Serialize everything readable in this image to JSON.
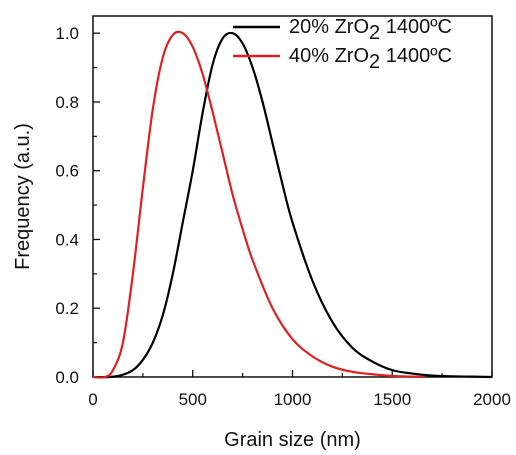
{
  "chart_data": {
    "type": "line",
    "xlabel": "Grain size (nm)",
    "ylabel": "Frequency (a.u.)",
    "xlim": [
      0,
      2000
    ],
    "ylim": [
      0,
      1.05
    ],
    "x_ticks": [
      "0",
      "500",
      "1000",
      "1500",
      "2000"
    ],
    "y_ticks": [
      "0.0",
      "0.2",
      "0.4",
      "0.6",
      "0.8",
      "1.0"
    ],
    "grid": false,
    "legend_position": "top-right",
    "series": [
      {
        "name": "20% ZrO2 1400ºC",
        "legend": {
          "prefix": "20% ZrO",
          "sub": "2",
          "suffix": " 1400ºC"
        },
        "color": "#000000",
        "x": [
          0,
          80,
          140,
          200,
          250,
          300,
          350,
          400,
          450,
          500,
          550,
          600,
          650,
          700,
          750,
          800,
          850,
          900,
          950,
          1000,
          1100,
          1200,
          1300,
          1400,
          1500,
          1600,
          1700,
          1800,
          1900,
          2000
        ],
        "y": [
          0,
          0.0,
          0.005,
          0.02,
          0.05,
          0.1,
          0.18,
          0.3,
          0.45,
          0.6,
          0.77,
          0.91,
          0.985,
          1.0,
          0.97,
          0.9,
          0.8,
          0.68,
          0.56,
          0.45,
          0.28,
          0.16,
          0.085,
          0.045,
          0.02,
          0.01,
          0.004,
          0.002,
          0.001,
          0.0
        ]
      },
      {
        "name": "40% ZrO2 1400ºC",
        "legend": {
          "prefix": "40% ZrO",
          "sub": "2",
          "suffix": " 1400ºC"
        },
        "color": "#e02020",
        "x": [
          0,
          60,
          100,
          150,
          200,
          250,
          300,
          350,
          400,
          450,
          500,
          550,
          600,
          650,
          700,
          750,
          800,
          900,
          1000,
          1100,
          1200,
          1300,
          1400,
          1500,
          1600,
          1660
        ],
        "y": [
          0,
          0.0,
          0.02,
          0.1,
          0.3,
          0.55,
          0.78,
          0.93,
          0.995,
          1.0,
          0.96,
          0.88,
          0.77,
          0.65,
          0.53,
          0.43,
          0.34,
          0.2,
          0.11,
          0.06,
          0.03,
          0.015,
          0.008,
          0.003,
          0.001,
          0.0
        ]
      }
    ]
  }
}
